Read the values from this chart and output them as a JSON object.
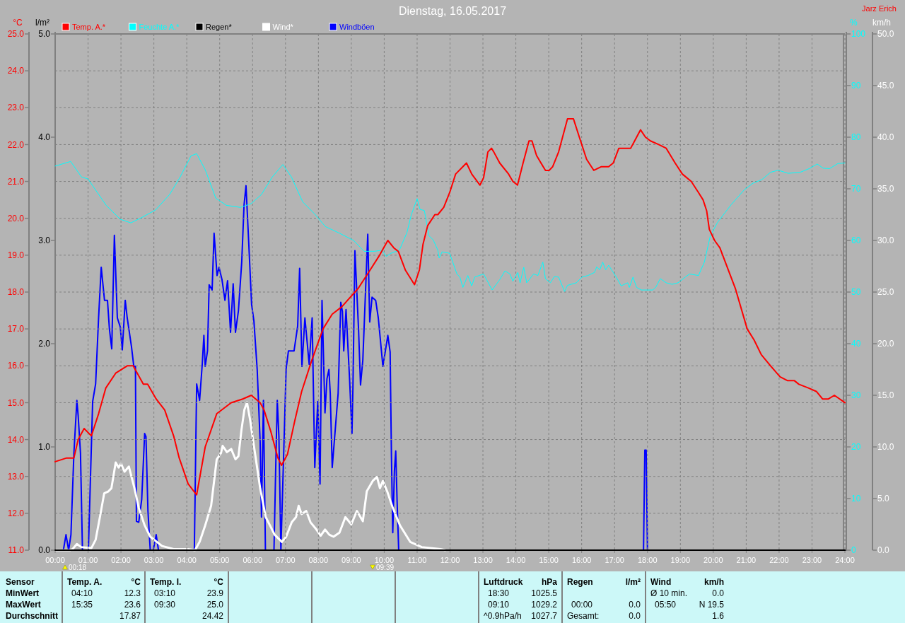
{
  "chart_data": [
    {
      "type": "line",
      "title": "Dienstag, 16.05.2017",
      "ylabel": "°C",
      "y2label": "l/m²",
      "y3label": "%",
      "annotations": [
        "Jarz Erich",
        "00:18",
        "09:39"
      ],
      "xlim": [
        0,
        24
      ],
      "xticks": [
        {
          "value": 0,
          "label": "00:00"
        },
        {
          "value": 1,
          "label": "01:00"
        },
        {
          "value": 2,
          "label": "02:00"
        },
        {
          "value": 3,
          "label": "03:00"
        },
        {
          "value": 4,
          "label": "04:00"
        },
        {
          "value": 5,
          "label": "05:00"
        },
        {
          "value": 6,
          "label": "06:00"
        },
        {
          "value": 7,
          "label": "07:00"
        },
        {
          "value": 8,
          "label": "08:00"
        },
        {
          "value": 9,
          "label": "09:00"
        },
        {
          "value": 10,
          "label": "10:00"
        },
        {
          "value": 11,
          "label": "11:00"
        },
        {
          "value": 12,
          "label": "12:00"
        },
        {
          "value": 13,
          "label": "13:00"
        },
        {
          "value": 14,
          "label": "14:00"
        },
        {
          "value": 15,
          "label": "15:00"
        },
        {
          "value": 16,
          "label": "16:00"
        },
        {
          "value": 17,
          "label": "17:00"
        },
        {
          "value": 18,
          "label": "18:00"
        },
        {
          "value": 19,
          "label": "19:00"
        },
        {
          "value": 20,
          "label": "20:00"
        },
        {
          "value": 21,
          "label": "21:00"
        },
        {
          "value": 22,
          "label": "22:00"
        },
        {
          "value": 23,
          "label": "23:00"
        },
        {
          "value": 24,
          "label": "24:00"
        }
      ],
      "ylim": [
        11,
        25
      ],
      "yticks": [
        {
          "value": 11,
          "label": "11.0"
        },
        {
          "value": 12,
          "label": "12.0"
        },
        {
          "value": 13,
          "label": "13.0"
        },
        {
          "value": 14,
          "label": "14.0"
        },
        {
          "value": 15,
          "label": "15.0"
        },
        {
          "value": 16,
          "label": "16.0"
        },
        {
          "value": 17,
          "label": "17.0"
        },
        {
          "value": 18,
          "label": "18.0"
        },
        {
          "value": 19,
          "label": "19.0"
        },
        {
          "value": 20,
          "label": "20.0"
        },
        {
          "value": 21,
          "label": "21.0"
        },
        {
          "value": 22,
          "label": "22.0"
        },
        {
          "value": 23,
          "label": "23.0"
        },
        {
          "value": 24,
          "label": "24.0"
        },
        {
          "value": 25,
          "label": "25.0"
        }
      ],
      "y2lim": [
        0,
        5
      ],
      "y2ticks": [
        {
          "value": 0,
          "label": "0.0"
        },
        {
          "value": 1,
          "label": "1.0"
        },
        {
          "value": 2,
          "label": "2.0"
        },
        {
          "value": 3,
          "label": "3.0"
        },
        {
          "value": 4,
          "label": "4.0"
        },
        {
          "value": 5,
          "label": "5.0"
        }
      ],
      "y3lim": [
        0,
        100
      ],
      "y3ticks": [
        0,
        10,
        20,
        30,
        40,
        50,
        60,
        70,
        80,
        90,
        100
      ],
      "grid": true,
      "legend": "top left",
      "series": [
        {
          "name": "Temp. A.*",
          "color": "#ff0000",
          "x": [
            0,
            0.35,
            0.57,
            0.7,
            0.88,
            1.1,
            1.32,
            1.54,
            1.84,
            2.19,
            2.37,
            2.68,
            2.81,
            3.07,
            3.33,
            3.6,
            3.77,
            4.04,
            4.3,
            4.56,
            4.91,
            5.35,
            5.7,
            5.96,
            6.23,
            6.35,
            6.56,
            6.77,
            6.88,
            7.06,
            7.28,
            7.49,
            7.78,
            8.14,
            8.42,
            8.71,
            9.21,
            9.5,
            9.86,
            10.11,
            10.29,
            10.43,
            10.64,
            10.92,
            11.07,
            11.18,
            11.32,
            11.54,
            11.63,
            11.81,
            11.99,
            12.17,
            12.39,
            12.5,
            12.66,
            12.91,
            13.02,
            13.15,
            13.26,
            13.33,
            13.51,
            13.78,
            13.91,
            14.05,
            14.22,
            14.4,
            14.49,
            14.63,
            14.9,
            15.01,
            15.12,
            15.3,
            15.57,
            15.66,
            15.75,
            15.93,
            16.15,
            16.37,
            16.6,
            16.82,
            16.96,
            17.13,
            17.27,
            17.49,
            17.61,
            17.79,
            17.94,
            18.09,
            18.34,
            18.57,
            18.84,
            19.06,
            19.33,
            19.55,
            19.69,
            19.8,
            19.88,
            20.04,
            20.2,
            20.67,
            21.03,
            21.24,
            21.46,
            21.74,
            22.03,
            22.25,
            22.46,
            22.6,
            22.89,
            23.14,
            23.32,
            23.5,
            23.68,
            24
          ],
          "values": [
            13.4,
            13.5,
            13.5,
            14.0,
            14.3,
            14.1,
            14.7,
            15.4,
            15.8,
            16.0,
            16.0,
            15.5,
            15.5,
            15.1,
            14.8,
            14.1,
            13.5,
            12.8,
            12.5,
            13.8,
            14.7,
            15.0,
            15.1,
            15.2,
            15.0,
            14.8,
            14.2,
            13.5,
            13.3,
            13.6,
            14.5,
            15.3,
            16.1,
            17.0,
            17.4,
            17.6,
            18.1,
            18.5,
            19.0,
            19.4,
            19.2,
            19.1,
            18.6,
            18.2,
            18.6,
            19.3,
            19.8,
            20.1,
            20.1,
            20.3,
            20.7,
            21.2,
            21.4,
            21.5,
            21.2,
            20.9,
            21.1,
            21.8,
            21.9,
            21.8,
            21.5,
            21.2,
            21.0,
            20.9,
            21.5,
            22.1,
            22.1,
            21.7,
            21.3,
            21.3,
            21.4,
            21.8,
            22.7,
            22.7,
            22.7,
            22.2,
            21.6,
            21.3,
            21.4,
            21.4,
            21.5,
            21.9,
            21.9,
            21.9,
            22.1,
            22.4,
            22.2,
            22.1,
            22.0,
            21.9,
            21.5,
            21.2,
            21.0,
            20.7,
            20.5,
            20.2,
            19.7,
            19.4,
            19.2,
            18.1,
            17.0,
            16.7,
            16.3,
            16.0,
            15.7,
            15.6,
            15.6,
            15.5,
            15.4,
            15.3,
            15.1,
            15.1,
            15.2,
            15.0
          ]
        },
        {
          "name": "Feuchte A.*",
          "color": "#00ffff",
          "axis": "y3",
          "x": [
            0,
            0.47,
            0.8,
            1.0,
            1.55,
            1.98,
            2.3,
            2.62,
            3.05,
            3.48,
            3.8,
            4.13,
            4.3,
            4.56,
            4.88,
            5.2,
            5.63,
            5.95,
            6.27,
            6.6,
            6.92,
            7.18,
            7.52,
            7.89,
            8.21,
            8.64,
            9.07,
            9.39,
            9.71,
            9.93,
            10.06,
            10.2,
            10.46,
            10.69,
            10.82,
            11.0,
            11.09,
            11.22,
            11.36,
            11.49,
            11.63,
            11.67,
            11.76,
            11.99,
            12.21,
            12.3,
            12.39,
            12.54,
            12.66,
            12.75,
            13.02,
            13.28,
            13.51,
            13.67,
            13.82,
            13.91,
            14.06,
            14.13,
            14.24,
            14.33,
            14.54,
            14.67,
            14.82,
            14.9,
            15.05,
            15.17,
            15.3,
            15.48,
            15.57,
            15.84,
            16.01,
            16.19,
            16.39,
            16.46,
            16.55,
            16.64,
            16.73,
            16.82,
            16.96,
            17.05,
            17.2,
            17.4,
            17.45,
            17.56,
            17.67,
            17.81,
            18.16,
            18.25,
            18.39,
            18.57,
            18.75,
            18.93,
            19.15,
            19.28,
            19.55,
            19.73,
            19.91,
            20.13,
            20.54,
            20.94,
            21.21,
            21.48,
            21.74,
            21.97,
            22.28,
            22.64,
            22.91,
            23.16,
            23.34,
            23.53,
            23.79,
            24
          ],
          "values": [
            74.4,
            75.3,
            72.3,
            71.9,
            66.8,
            64.1,
            63.4,
            64.4,
            65.9,
            68.9,
            72.3,
            76.4,
            76.8,
            73.7,
            68.2,
            66.8,
            66.4,
            67.1,
            68.9,
            72.3,
            74.7,
            72.3,
            67.5,
            65.1,
            62.7,
            61.4,
            60.0,
            57.9,
            57.9,
            58.1,
            56.9,
            57.5,
            58.1,
            61.5,
            64.9,
            68.1,
            66.0,
            65.8,
            60.9,
            60.1,
            58.1,
            56.6,
            57.8,
            57.5,
            53.5,
            52.9,
            50.9,
            53.2,
            51.2,
            52.9,
            53.5,
            50.4,
            52.4,
            54.1,
            53.5,
            52.1,
            53.8,
            51.8,
            54.8,
            51.8,
            53.5,
            53.2,
            55.8,
            52.6,
            51.8,
            53.0,
            52.9,
            50.1,
            51.3,
            51.8,
            52.9,
            53.2,
            53.8,
            54.9,
            54.3,
            55.8,
            54.3,
            55.2,
            53.8,
            52.9,
            51.2,
            51.8,
            50.9,
            52.9,
            50.9,
            50.4,
            50.4,
            50.9,
            52.6,
            51.8,
            51.5,
            51.8,
            52.9,
            53.5,
            53.2,
            55.8,
            60.9,
            63.5,
            66.9,
            69.8,
            71.1,
            71.8,
            73.2,
            73.6,
            73.0,
            73.2,
            73.9,
            74.8,
            74.0,
            73.9,
            74.9,
            75.0
          ]
        },
        {
          "name": "Regen*",
          "color": "#000000",
          "axis": "y2",
          "x": [
            0,
            24
          ],
          "values": [
            0,
            0
          ]
        }
      ]
    },
    {
      "type": "line",
      "ylabel": "km/h",
      "xlim": [
        0,
        24
      ],
      "ylim": [
        0,
        50
      ],
      "yticks": [
        {
          "value": 0,
          "label": "0.0"
        },
        {
          "value": 5,
          "label": "5.0"
        },
        {
          "value": 10,
          "label": "10.0"
        },
        {
          "value": 15,
          "label": "15.0"
        },
        {
          "value": 20,
          "label": "20.0"
        },
        {
          "value": 25,
          "label": "25.0"
        },
        {
          "value": 30,
          "label": "30.0"
        },
        {
          "value": 35,
          "label": "35.0"
        },
        {
          "value": 40,
          "label": "40.0"
        },
        {
          "value": 45,
          "label": "45.0"
        },
        {
          "value": 50,
          "label": "50.0"
        }
      ],
      "tick_labels": "y",
      "legend": "top left",
      "series": [
        {
          "name": "Wind*",
          "color": "#ffffff",
          "x": [
            0,
            0.45,
            0.53,
            0.66,
            0.79,
            1.1,
            1.23,
            1.36,
            1.49,
            1.62,
            1.71,
            1.84,
            1.93,
            2.0,
            2.11,
            2.24,
            2.41,
            2.54,
            2.72,
            2.89,
            3.25,
            3.6,
            4.04,
            4.25,
            4.39,
            4.56,
            4.74,
            4.91,
            5.04,
            5.09,
            5.22,
            5.35,
            5.48,
            5.57,
            5.66,
            5.75,
            5.83,
            5.92,
            6.05,
            6.23,
            6.4,
            6.67,
            6.89,
            7.02,
            7.19,
            7.32,
            7.4,
            7.49,
            7.63,
            7.76,
            7.94,
            8.07,
            8.2,
            8.33,
            8.46,
            8.64,
            8.82,
            9.0,
            9.17,
            9.35,
            9.47,
            9.65,
            9.78,
            9.87,
            9.96,
            10.09,
            10.26,
            10.48,
            10.79,
            11.14,
            11.71,
            11.85
          ],
          "values": [
            0,
            0,
            0.1,
            0.6,
            0.3,
            0.2,
            1.0,
            3.2,
            5.5,
            5.7,
            6.0,
            8.5,
            8.0,
            8.4,
            7.6,
            8.1,
            6.0,
            4.1,
            2.4,
            1.3,
            0.4,
            0.1,
            0.1,
            0,
            0.8,
            2.4,
            4.3,
            8.8,
            9.4,
            10.1,
            9.5,
            9.8,
            8.8,
            9.1,
            11.6,
            13.6,
            14.3,
            12.7,
            9.9,
            6.0,
            3.2,
            1.5,
            0.8,
            1.3,
            2.7,
            3.2,
            4.3,
            3.5,
            3.8,
            2.7,
            2.0,
            1.4,
            2.0,
            1.5,
            1.3,
            1.7,
            3.2,
            2.5,
            3.8,
            2.8,
            5.7,
            6.7,
            7.1,
            6.0,
            6.7,
            5.7,
            4.1,
            2.4,
            0.8,
            0.3,
            0.1,
            0
          ]
        },
        {
          "name": "Windböen",
          "color": "#0000ff",
          "x": [
            0,
            0.25,
            0.33,
            0.41,
            0.48,
            0.57,
            0.66,
            0.7,
            0.77,
            0.83,
            1.01,
            1.14,
            1.23,
            1.32,
            1.4,
            1.5,
            1.59,
            1.65,
            1.72,
            1.8,
            1.89,
            1.98,
            2.04,
            2.13,
            2.19,
            2.32,
            2.39,
            2.44,
            2.47,
            2.54,
            2.63,
            2.72,
            2.76,
            2.82,
            2.89,
            2.98,
            3.07,
            3.14,
            4.23,
            4.3,
            4.39,
            4.47,
            4.52,
            4.56,
            4.63,
            4.68,
            4.77,
            4.83,
            4.92,
            4.98,
            5.07,
            5.16,
            5.24,
            5.33,
            5.41,
            5.48,
            5.57,
            5.67,
            5.74,
            5.8,
            5.89,
            5.97,
            6.04,
            6.14,
            6.23,
            6.27,
            6.33,
            6.39,
            6.65,
            6.71,
            6.75,
            6.8,
            6.86,
            6.93,
            7.02,
            7.09,
            7.26,
            7.37,
            7.43,
            7.5,
            7.59,
            7.72,
            7.81,
            7.89,
            7.98,
            8.05,
            8.11,
            8.2,
            8.26,
            8.32,
            8.36,
            8.42,
            8.49,
            8.6,
            8.68,
            8.73,
            8.77,
            8.84,
            8.95,
            9.02,
            9.05,
            9.11,
            9.22,
            9.28,
            9.35,
            9.5,
            9.56,
            9.63,
            9.74,
            9.82,
            9.96,
            10.11,
            10.18,
            10.22,
            10.26,
            10.31,
            10.35,
            10.39,
            10.44,
            17.88,
            17.92,
            17.96,
            18.0,
            24
          ],
          "values": [
            0,
            0,
            1.5,
            0,
            1.5,
            9.4,
            14.5,
            13.0,
            9.4,
            0,
            0,
            14.4,
            16.1,
            22.5,
            27.4,
            24.2,
            24.2,
            21.4,
            19.5,
            30.5,
            22.5,
            21.6,
            19.4,
            24.2,
            22.5,
            19.7,
            17.8,
            17.8,
            2.8,
            2.7,
            4.9,
            11.3,
            11.0,
            3.8,
            0,
            0,
            1.5,
            0,
            0,
            16.1,
            14.5,
            18.0,
            20.8,
            17.8,
            19.3,
            25.7,
            25.2,
            30.7,
            26.6,
            27.4,
            26.2,
            24.2,
            26.1,
            21.1,
            25.8,
            21.1,
            23.2,
            27.9,
            33.4,
            35.3,
            29.3,
            23.8,
            22.2,
            17.5,
            10.5,
            3.2,
            14.5,
            0,
            0,
            9.0,
            14.5,
            11.0,
            0,
            7.7,
            17.6,
            19.3,
            19.3,
            21.7,
            27.3,
            17.8,
            22.5,
            18.0,
            22.5,
            8.0,
            14.4,
            6.4,
            24.2,
            13.3,
            16.6,
            17.5,
            15.2,
            8.0,
            10.8,
            15.2,
            24.0,
            23.1,
            19.3,
            23.3,
            16.4,
            11.3,
            15.8,
            29.0,
            21.4,
            16.0,
            18.4,
            30.6,
            22.1,
            24.5,
            24.2,
            22.5,
            17.8,
            20.8,
            19.2,
            9.1,
            1.7,
            7.7,
            9.6,
            4.9,
            0,
            0,
            9.7,
            9.7,
            0,
            0
          ]
        }
      ]
    },
    {
      "type": "other",
      "annotations": [
        "Sensor",
        "MinWert",
        "MaxWert",
        "Durchschnitt",
        "Temp. A.",
        "°C",
        "04:10",
        "12.3",
        "15:35",
        "23.6",
        "17.87",
        "Temp. I.",
        "°C",
        "03:10",
        "23.9",
        "09:30",
        "25.0",
        "24.42",
        "Luftdruck",
        "hPa",
        "18:30",
        "1025.5",
        "09:10",
        "1029.2",
        "^0.9hPa/h",
        "1027.7",
        "Regen",
        "l/m²",
        "00:00",
        "0.0",
        "Gesamt:",
        "0.0",
        "Wind",
        "km/h",
        "Ø 10 min.",
        "0.0",
        "05:50",
        "N 19.5",
        "1.6"
      ]
    }
  ]
}
